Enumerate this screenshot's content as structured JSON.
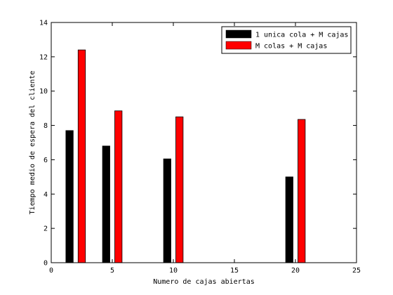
{
  "chart_data": {
    "type": "bar",
    "title": "",
    "xlabel": "Numero de cajas abiertas",
    "ylabel": "Tiempo medio de espera del cliente",
    "xlim": [
      0,
      25
    ],
    "ylim": [
      0,
      14
    ],
    "x_ticks": [
      0,
      5,
      10,
      15,
      20,
      25
    ],
    "y_ticks": [
      0,
      2,
      4,
      6,
      8,
      10,
      12,
      14
    ],
    "grid": false,
    "legend_position": "top-right",
    "bar_width": 0.6,
    "series": [
      {
        "name": "1 unica cola + M cajas",
        "color": "#000000",
        "x": [
          1.5,
          4.5,
          9.5,
          19.5
        ],
        "values": [
          7.7,
          6.8,
          6.05,
          5.0
        ]
      },
      {
        "name": "M colas + M cajas",
        "color": "#ff0000",
        "x": [
          2.5,
          5.5,
          10.5,
          20.5
        ],
        "values": [
          12.4,
          8.85,
          8.5,
          8.35
        ]
      }
    ]
  }
}
